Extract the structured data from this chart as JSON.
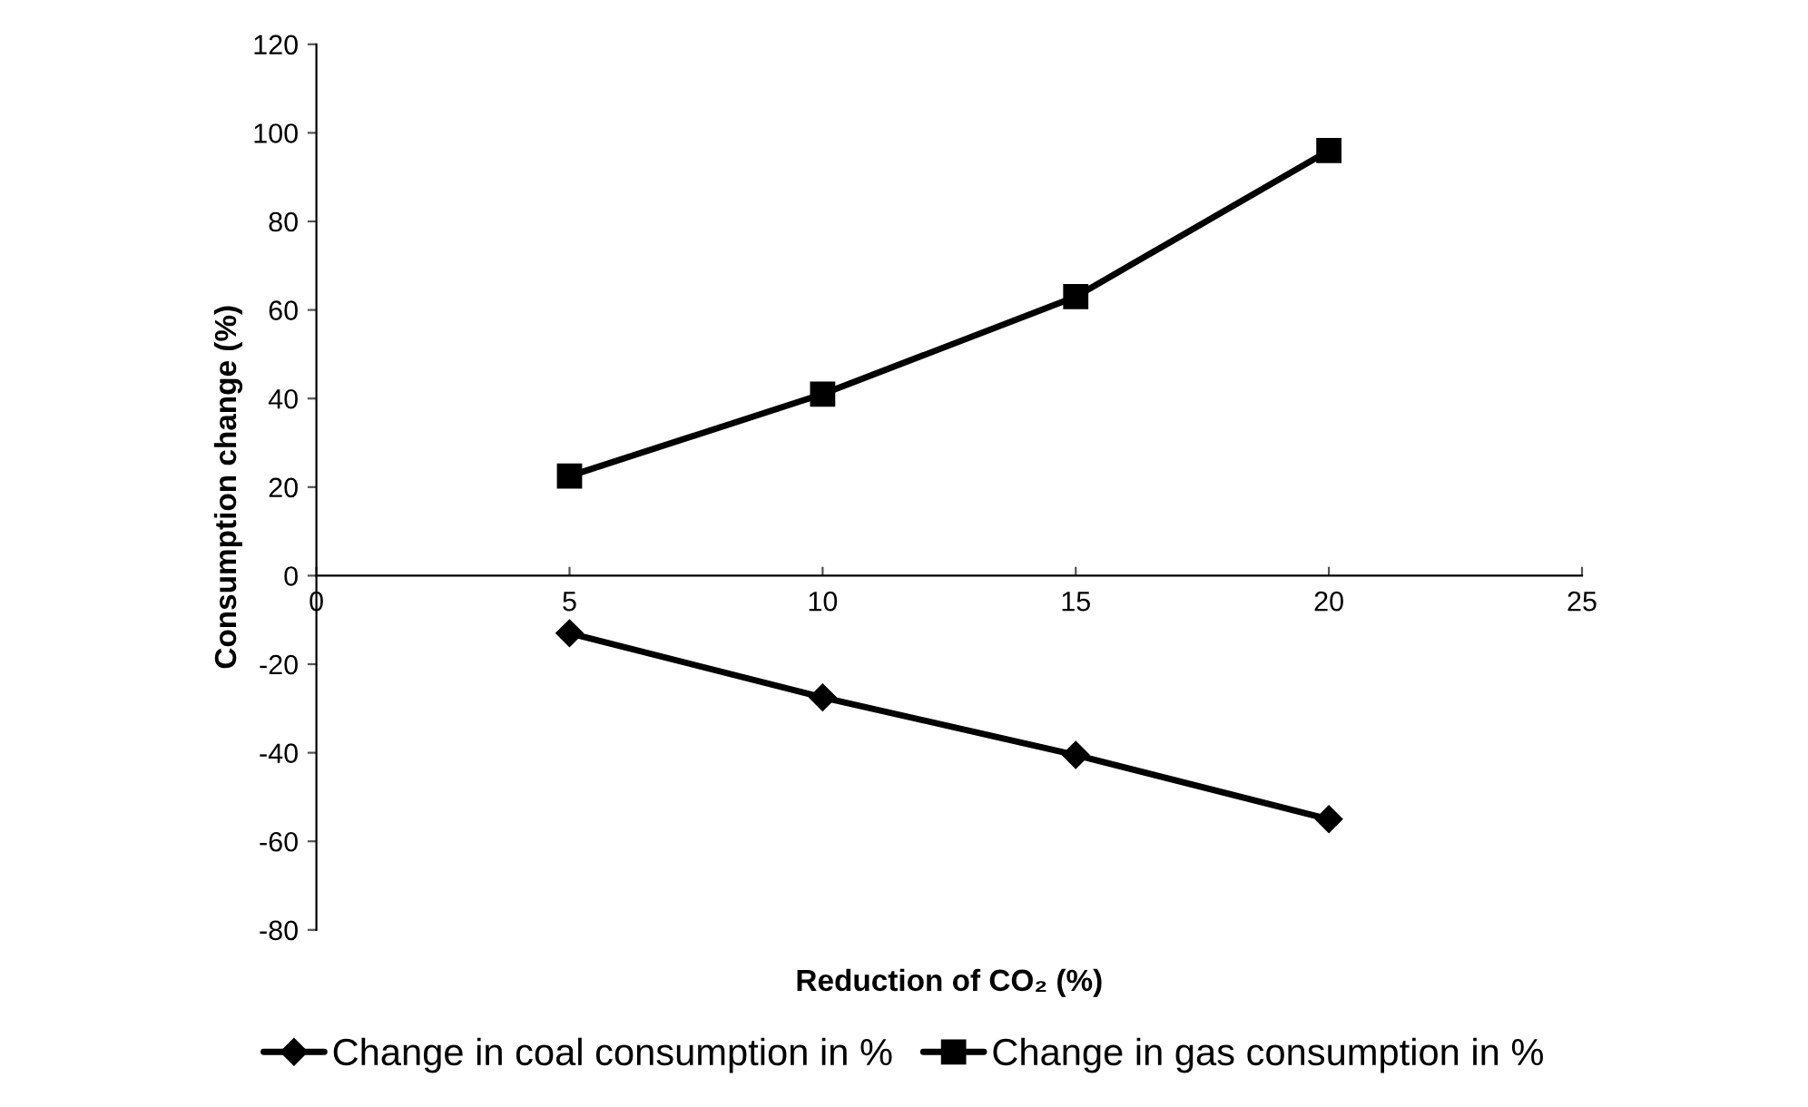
{
  "chart_data": {
    "type": "line",
    "xlabel": "Reduction of CO₂ (%)",
    "ylabel": "Consumption change (%)",
    "x": [
      5,
      10,
      15,
      20
    ],
    "series": [
      {
        "name": "Change in coal consumption in %",
        "color": "#000000",
        "marker": "diamond",
        "values": [
          -13,
          -27.5,
          -40.5,
          -55
        ]
      },
      {
        "name": "Change in gas consumption in %",
        "color": "#000000",
        "marker": "square",
        "values": [
          22.5,
          41,
          63,
          96
        ]
      }
    ],
    "xlim": [
      0,
      25
    ],
    "xticks": [
      0,
      5,
      10,
      15,
      20,
      25
    ],
    "ylim": [
      -80,
      120
    ],
    "yticks": [
      -80,
      -60,
      -40,
      -20,
      0,
      20,
      40,
      60,
      80,
      100,
      120
    ],
    "grid": false,
    "legend": "bottom",
    "line_style": "solid"
  }
}
